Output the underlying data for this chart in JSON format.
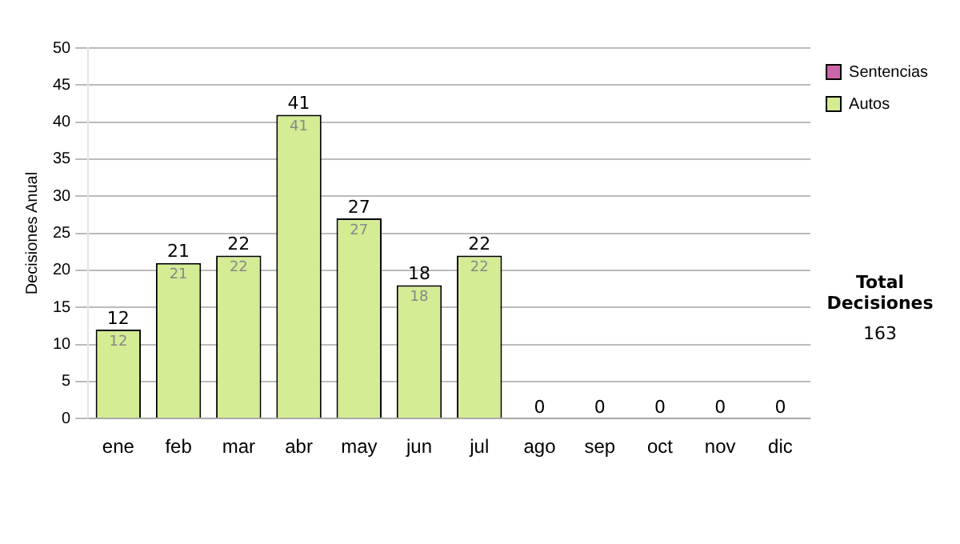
{
  "chart_data": {
    "type": "bar",
    "ylabel": "Decisiones Anual",
    "categories": [
      "ene",
      "feb",
      "mar",
      "abr",
      "may",
      "jun",
      "jul",
      "ago",
      "sep",
      "oct",
      "nov",
      "dic"
    ],
    "stacked": true,
    "series": [
      {
        "name": "Sentencias",
        "color": "#cc66aa",
        "values": [
          0,
          0,
          0,
          0,
          0,
          0,
          0,
          0,
          0,
          0,
          0,
          0
        ]
      },
      {
        "name": "Autos",
        "color": "#d4ec94",
        "values": [
          12,
          21,
          22,
          41,
          27,
          18,
          22,
          0,
          0,
          0,
          0,
          0
        ],
        "value_labels": [
          "12",
          "21",
          "22",
          "41",
          "27",
          "18",
          "22",
          null,
          null,
          null,
          null,
          null
        ]
      }
    ],
    "totals": [
      "12",
      "21",
      "22",
      "41",
      "27",
      "18",
      "22",
      "0",
      "0",
      "0",
      "0",
      "0"
    ],
    "ylim": [
      0,
      50
    ],
    "yticks": [
      0,
      5,
      10,
      15,
      20,
      25,
      30,
      35,
      40,
      45,
      50
    ],
    "grid": "y",
    "legend": "right",
    "annotations": [
      "Total Decisiones",
      "163"
    ]
  }
}
